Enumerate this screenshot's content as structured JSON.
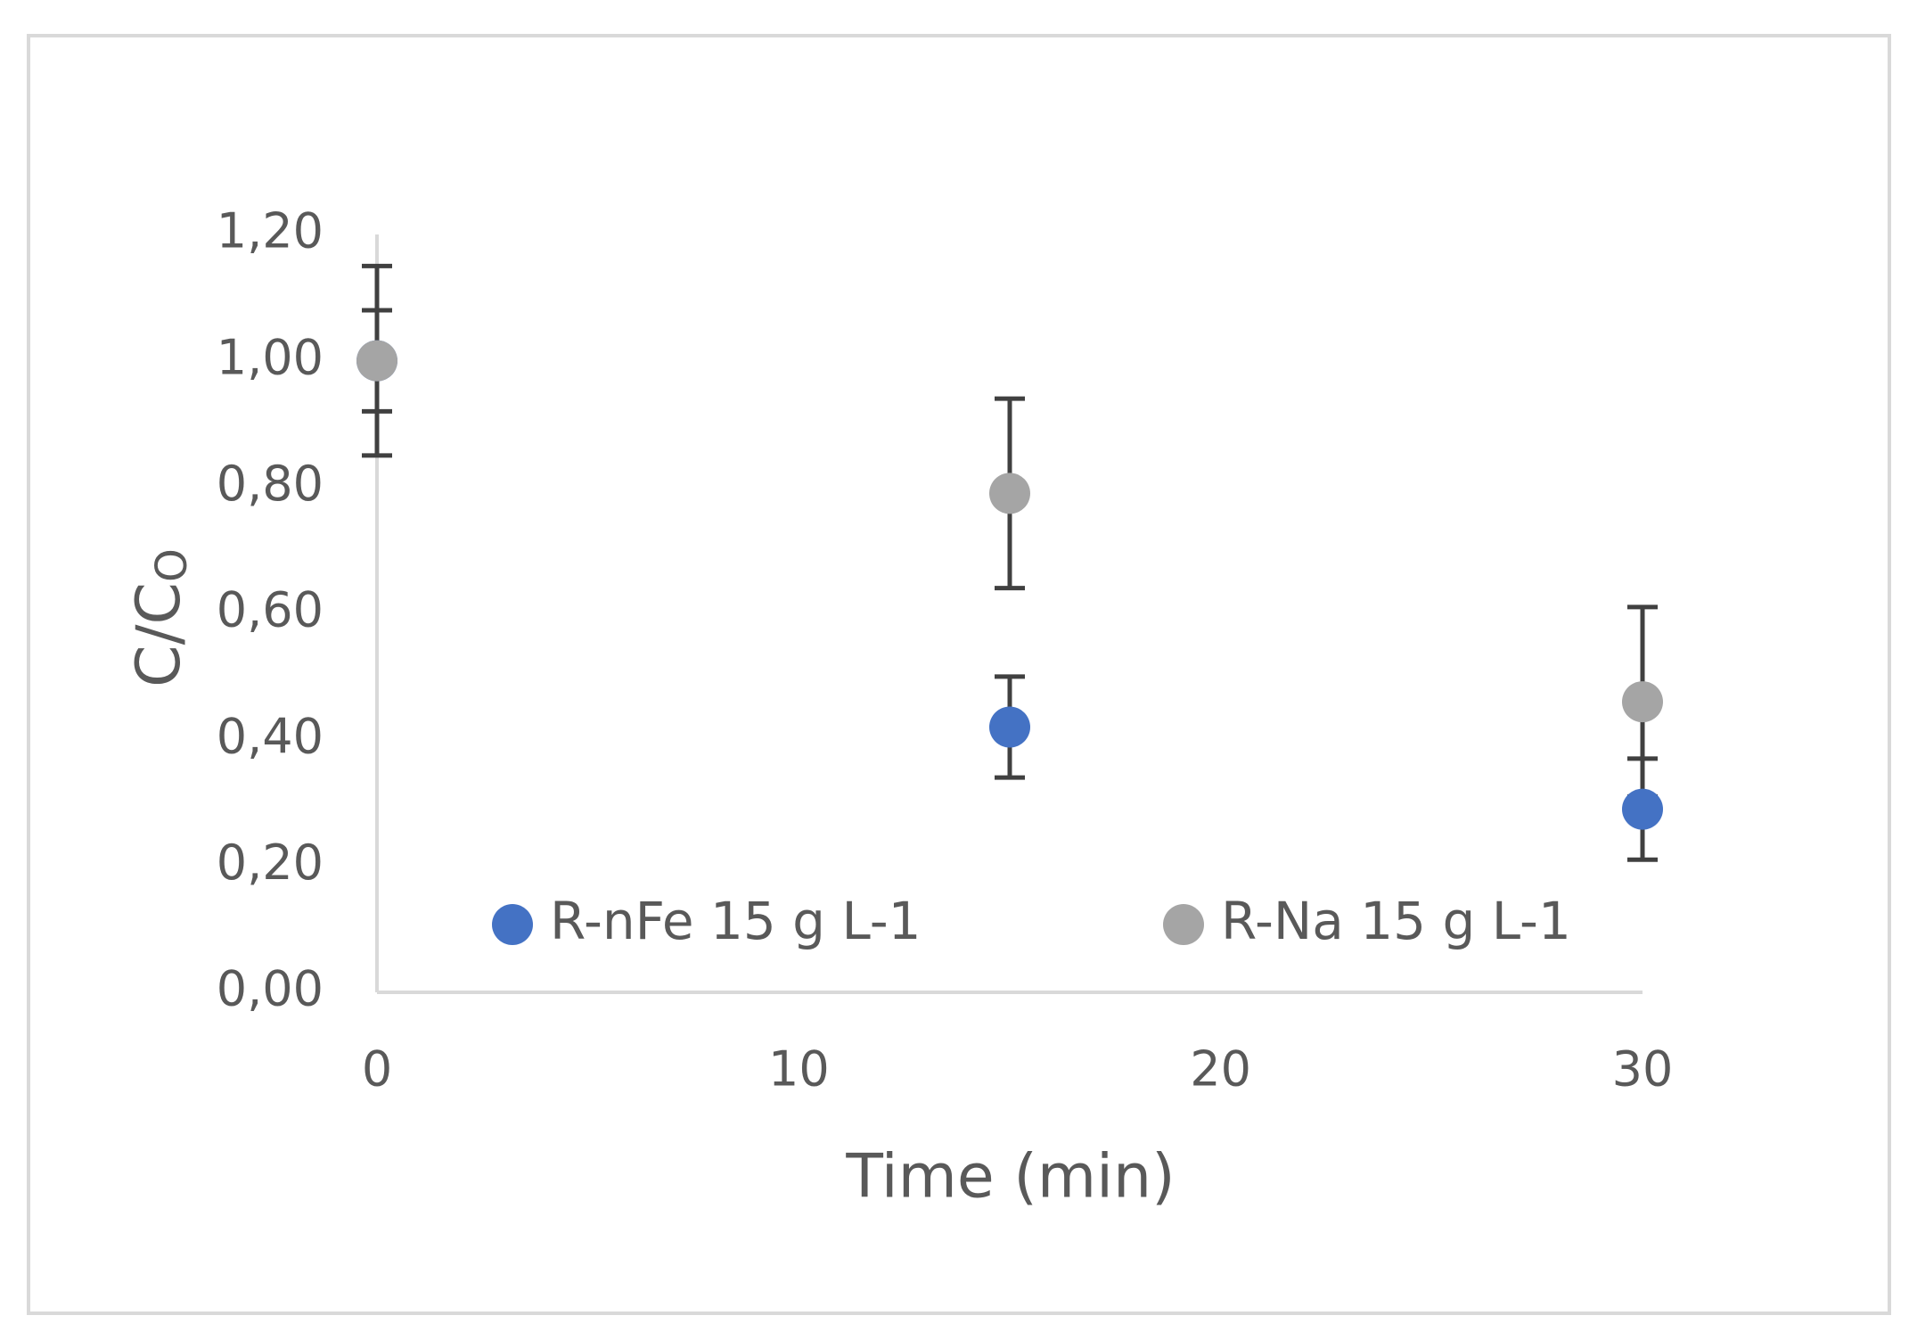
{
  "chart_data": {
    "type": "scatter",
    "x_label": "Time (min)",
    "y_label": "C/C",
    "y_label_subscript": "O",
    "xlim": [
      0,
      30
    ],
    "xticks": [
      0,
      10,
      20,
      30
    ],
    "ylim": [
      0,
      1.2
    ],
    "yticks": [
      {
        "value": 0,
        "label": "0,00"
      },
      {
        "value": 0.2,
        "label": "0,20"
      },
      {
        "value": 0.4,
        "label": "0,40"
      },
      {
        "value": 0.6,
        "label": "0,60"
      },
      {
        "value": 0.8,
        "label": "0,80"
      },
      {
        "value": 1.0,
        "label": "1,00"
      },
      {
        "value": 1.2,
        "label": "1,20"
      }
    ],
    "grid": false,
    "legend": "bottom",
    "x": [
      0,
      15,
      30
    ],
    "series": [
      {
        "name": "R-nFe 15 g L-1",
        "color": "#4472c4",
        "values": [
          1.0,
          0.42,
          0.29
        ],
        "errors": [
          0.08,
          0.08,
          0.08
        ]
      },
      {
        "name": "R-Na 15 g L-1",
        "color": "#a5a5a5",
        "values": [
          1.0,
          0.79,
          0.46
        ],
        "errors": [
          0.15,
          0.15,
          0.15
        ]
      }
    ]
  }
}
